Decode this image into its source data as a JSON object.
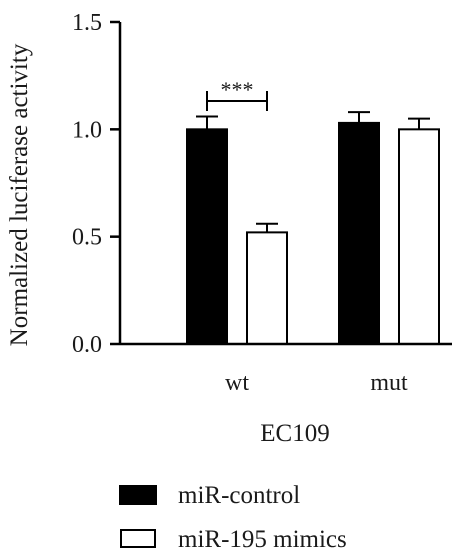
{
  "chart_data": {
    "type": "bar",
    "categories": [
      "wt",
      "mut"
    ],
    "series": [
      {
        "name": "miR-control",
        "values": [
          1.0,
          1.03
        ],
        "errors": [
          0.06,
          0.05
        ],
        "color": "#000000",
        "fill": "solid"
      },
      {
        "name": "miR-195 mimics",
        "values": [
          0.52,
          1.0
        ],
        "errors": [
          0.04,
          0.05
        ],
        "color": "#000000",
        "fill": "hollow"
      }
    ],
    "ylabel": "Normalized luciferase activity",
    "xlabel": "EC109",
    "ylim": [
      0,
      1.5
    ],
    "yticks": [
      0.0,
      0.5,
      1.0,
      1.5
    ],
    "ytick_labels": [
      "0.0",
      "0.5",
      "1.0",
      "1.5"
    ],
    "significance": [
      {
        "category": "wt",
        "label": "***"
      }
    ],
    "grid": false,
    "legend_position": "bottom"
  }
}
